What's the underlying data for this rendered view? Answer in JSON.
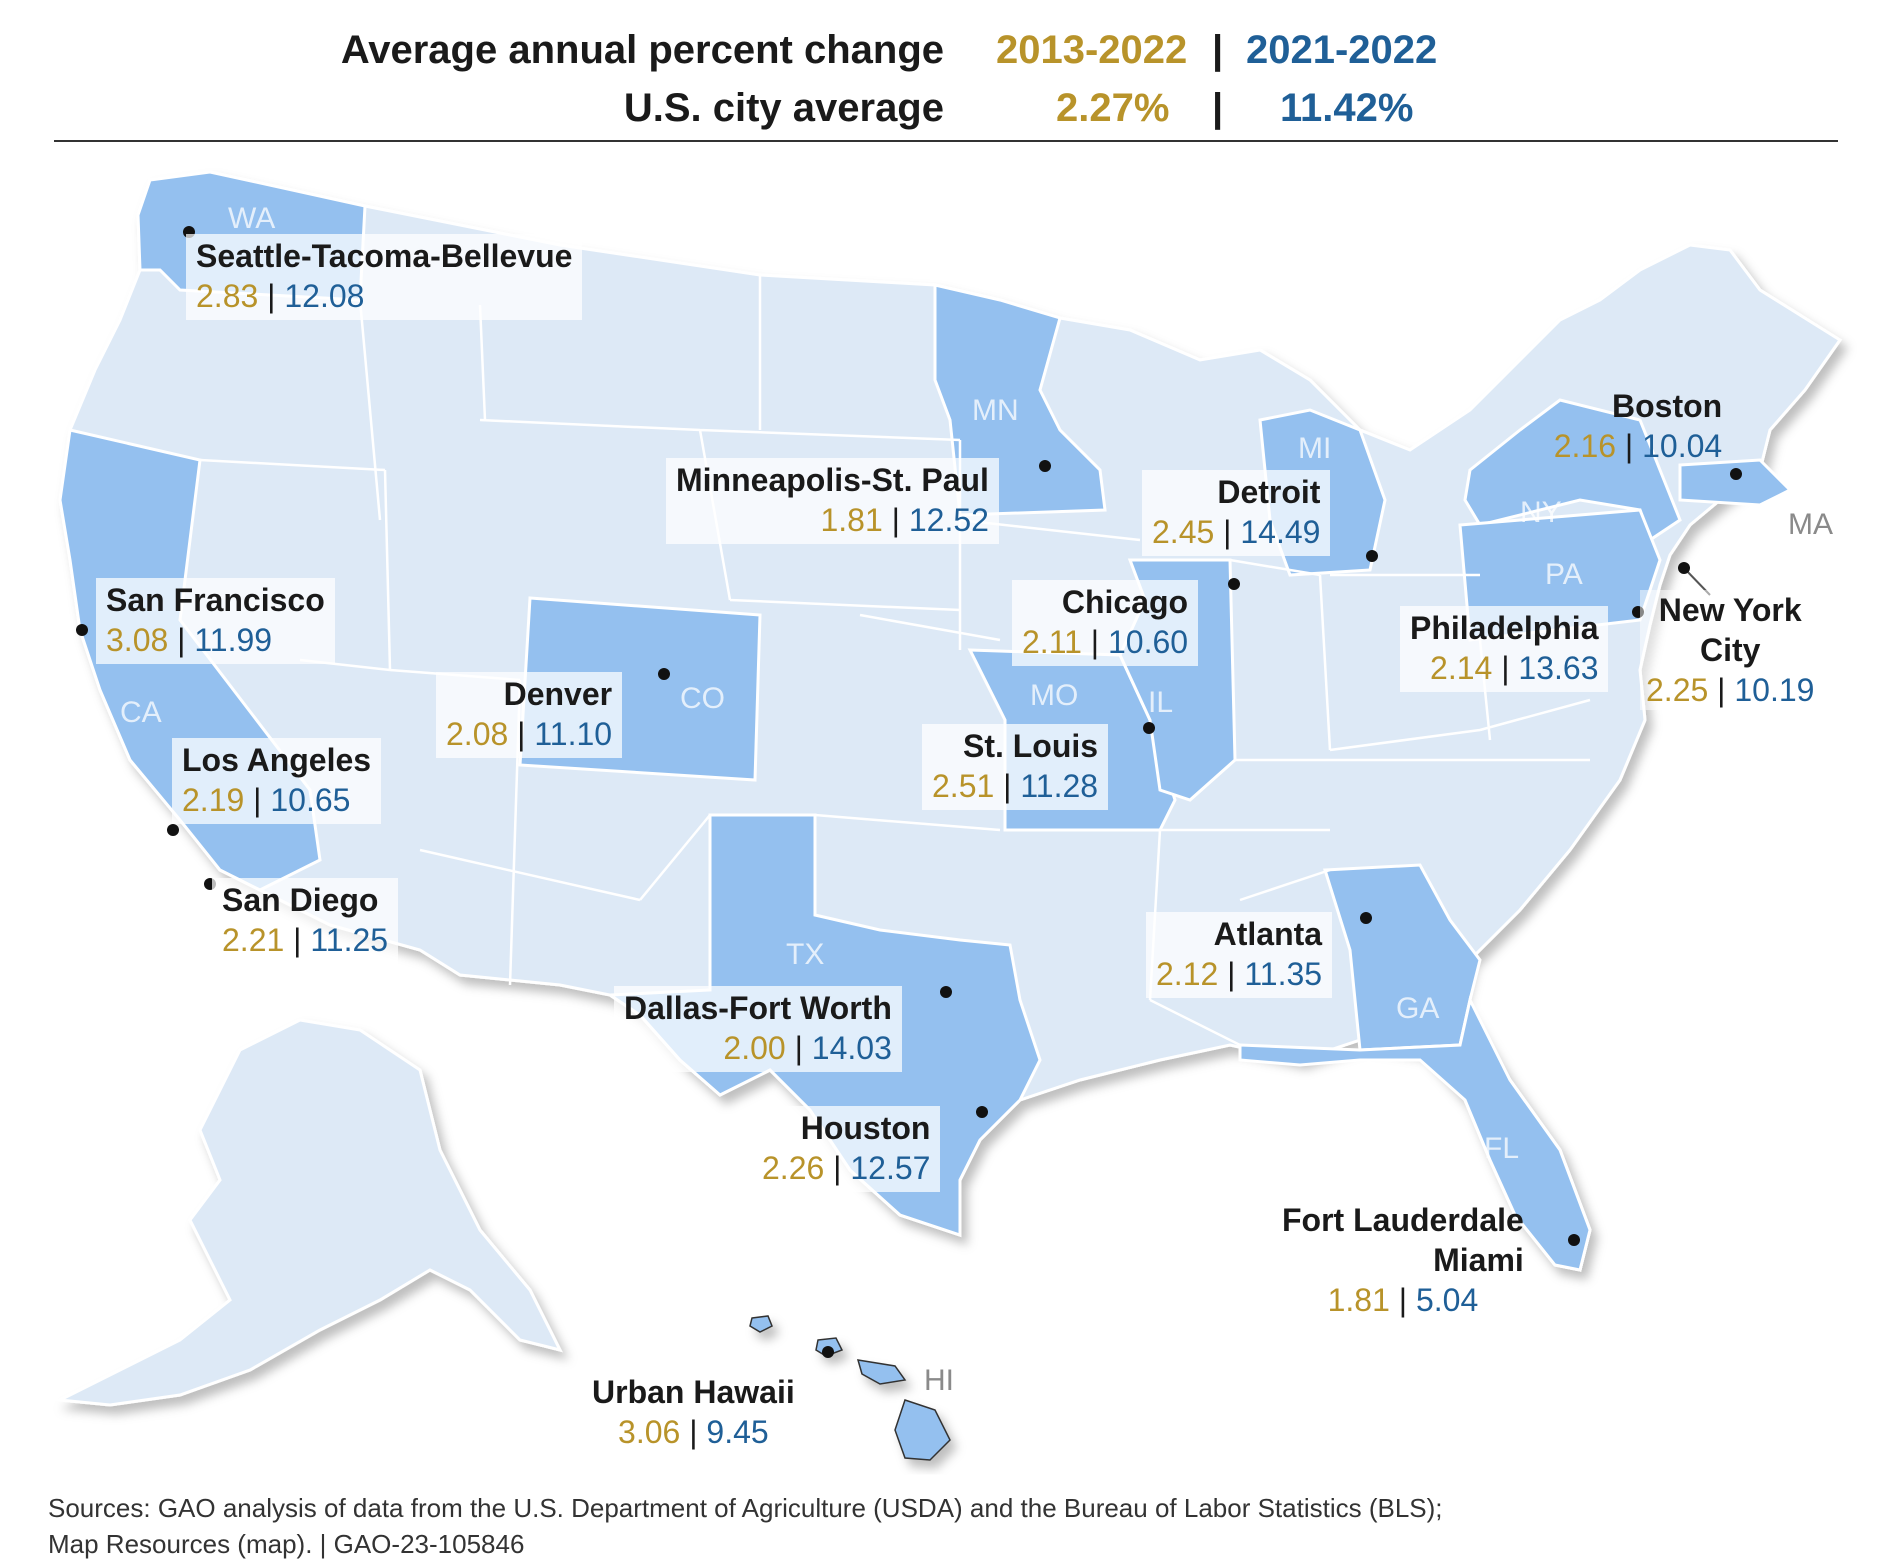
{
  "header": {
    "title_label": "Average annual percent change",
    "period_a": "2013-2022",
    "separator": "|",
    "period_b": "2021-2022",
    "avg_label": "U.S. city average",
    "avg_a": "2.27%",
    "avg_b": "11.42%"
  },
  "colors": {
    "period_a": "#b8932a",
    "period_b": "#1f5f97",
    "state_light": "#dde9f6",
    "state_highlight": "#94c0ef"
  },
  "states": {
    "WA": "WA",
    "CA": "CA",
    "CO": "CO",
    "MN": "MN",
    "MO": "MO",
    "IL": "IL",
    "MI": "MI",
    "TX": "TX",
    "GA": "GA",
    "FL": "FL",
    "NY": "NY",
    "PA": "PA",
    "MA": "MA",
    "HI": "HI"
  },
  "cities": [
    {
      "id": "seattle",
      "name": "Seattle-Tacoma-Bellevue",
      "a": "2.83",
      "b": "12.08"
    },
    {
      "id": "minneapolis",
      "name": "Minneapolis-St. Paul",
      "a": "1.81",
      "b": "12.52"
    },
    {
      "id": "boston",
      "name": "Boston",
      "a": "2.16",
      "b": "10.04"
    },
    {
      "id": "detroit",
      "name": "Detroit",
      "a": "2.45",
      "b": "14.49"
    },
    {
      "id": "sanfrancisco",
      "name": "San Francisco",
      "a": "3.08",
      "b": "11.99"
    },
    {
      "id": "chicago",
      "name": "Chicago",
      "a": "2.11",
      "b": "10.60"
    },
    {
      "id": "philadelphia",
      "name": "Philadelphia",
      "a": "2.14",
      "b": "13.63"
    },
    {
      "id": "newyork",
      "name_line1": "New York",
      "name_line2": "City",
      "a": "2.25",
      "b": "10.19"
    },
    {
      "id": "denver",
      "name": "Denver",
      "a": "2.08",
      "b": "11.10"
    },
    {
      "id": "stlouis",
      "name": "St. Louis",
      "a": "2.51",
      "b": "11.28"
    },
    {
      "id": "losangeles",
      "name": "Los Angeles",
      "a": "2.19",
      "b": "10.65"
    },
    {
      "id": "sandiego",
      "name": "San Diego",
      "a": "2.21",
      "b": "11.25"
    },
    {
      "id": "atlanta",
      "name": "Atlanta",
      "a": "2.12",
      "b": "11.35"
    },
    {
      "id": "dallas",
      "name": "Dallas-Fort Worth",
      "a": "2.00",
      "b": "14.03"
    },
    {
      "id": "houston",
      "name": "Houston",
      "a": "2.26",
      "b": "12.57"
    },
    {
      "id": "miami",
      "name_line1": "Fort Lauderdale",
      "name_line2": "Miami",
      "a": "1.81",
      "b": "5.04"
    },
    {
      "id": "hawaii",
      "name": "Urban Hawaii",
      "a": "3.06",
      "b": "9.45"
    }
  ],
  "source": {
    "line1": "Sources: GAO analysis of data from the U.S. Department of Agriculture (USDA) and the Bureau of Labor Statistics (BLS);",
    "line2": "Map Resources (map).  |  GAO-23-105846"
  }
}
